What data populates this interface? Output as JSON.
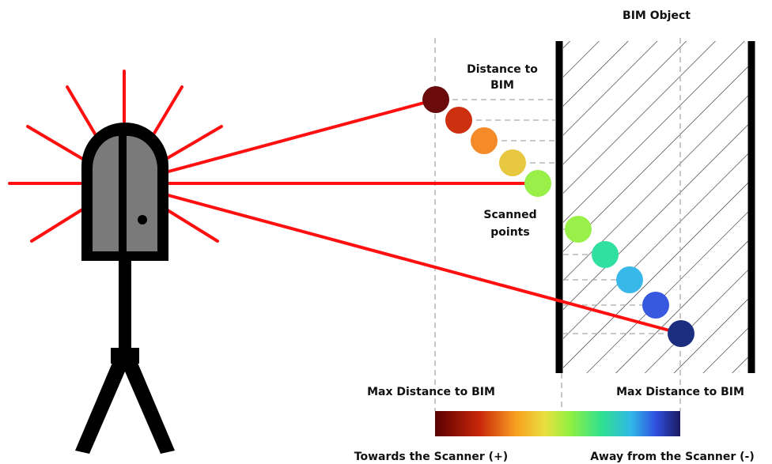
{
  "labels": {
    "bim_object": "BIM Object",
    "distance_to_bim": [
      "Distance to",
      "BIM"
    ],
    "scanned_points": [
      "Scanned",
      "points"
    ],
    "max_left": "Max Distance to BIM",
    "max_right": "Max Distance to BIM",
    "towards": "Towards the Scanner (+)",
    "away": "Away from the Scanner (-)"
  }
}
